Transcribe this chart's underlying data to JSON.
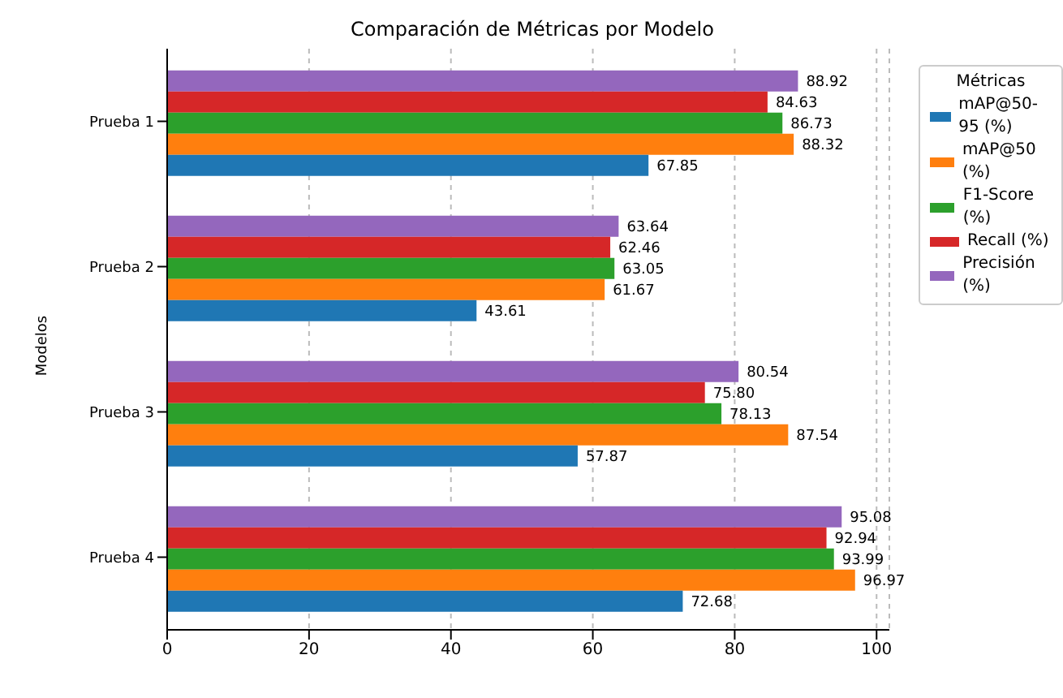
{
  "chart_data": {
    "type": "bar",
    "orientation": "horizontal",
    "title": "Comparación de Métricas por Modelo",
    "ylabel": "Modelos",
    "legend_title": "Métricas",
    "categories": [
      "Prueba 1",
      "Prueba 2",
      "Prueba 3",
      "Prueba 4"
    ],
    "series": [
      {
        "name": "mAP@50-95 (%)",
        "color": "#1f77b4",
        "values": [
          67.85,
          43.61,
          57.87,
          72.68
        ],
        "value_labels": [
          "67.85",
          "43.61",
          "57.87",
          "72.68"
        ]
      },
      {
        "name": "mAP@50 (%)",
        "color": "#ff7f0e",
        "values": [
          88.32,
          61.67,
          87.54,
          96.97
        ],
        "value_labels": [
          "88.32",
          "61.67",
          "87.54",
          "96.97"
        ]
      },
      {
        "name": "F1-Score (%)",
        "color": "#2ca02c",
        "values": [
          86.73,
          63.05,
          78.13,
          93.99
        ],
        "value_labels": [
          "86.73",
          "63.05",
          "78.13",
          "93.99"
        ]
      },
      {
        "name": "Recall (%)",
        "color": "#d62728",
        "values": [
          84.63,
          62.46,
          75.8,
          92.94
        ],
        "value_labels": [
          "84.63",
          "62.46",
          "75.80",
          "92.94"
        ]
      },
      {
        "name": "Precisión (%)",
        "color": "#9467bd",
        "values": [
          88.92,
          63.64,
          80.54,
          95.08
        ],
        "value_labels": [
          "88.92",
          "63.64",
          "80.54",
          "95.08"
        ]
      }
    ],
    "xlim": [
      0,
      101.8
    ],
    "xticks": [
      0,
      20,
      40,
      60,
      80,
      100
    ],
    "grid": "x",
    "legend": "top right"
  }
}
